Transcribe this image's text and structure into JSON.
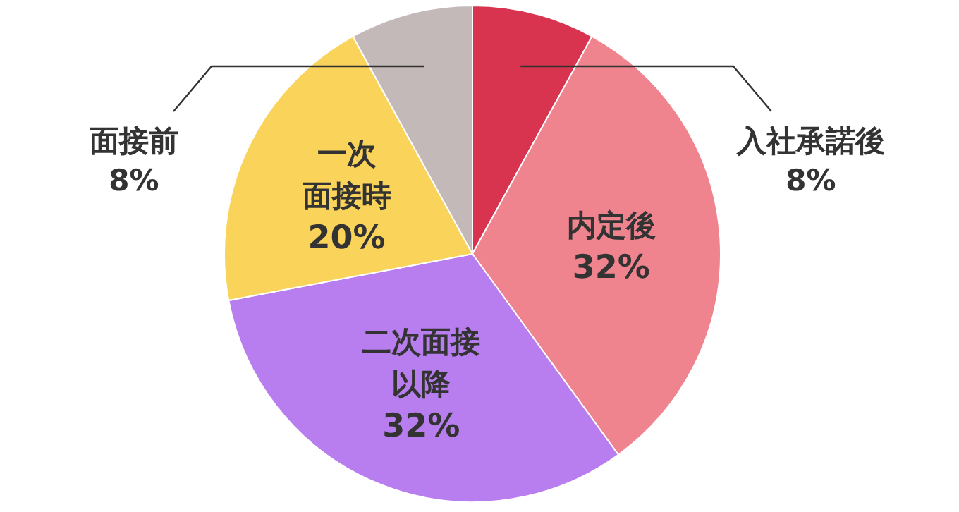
{
  "chart_data": {
    "type": "pie",
    "categories": [
      "入社承諾後",
      "内定後",
      "二次面接以降",
      "一次面接時",
      "面接前"
    ],
    "values": [
      8,
      32,
      32,
      20,
      8
    ],
    "value_labels": [
      "8%",
      "32%",
      "32%",
      "20%",
      "8%"
    ],
    "colors": [
      "#d9344f",
      "#ef848e",
      "#b87ef0",
      "#fad35a",
      "#c4b9b9"
    ]
  }
}
